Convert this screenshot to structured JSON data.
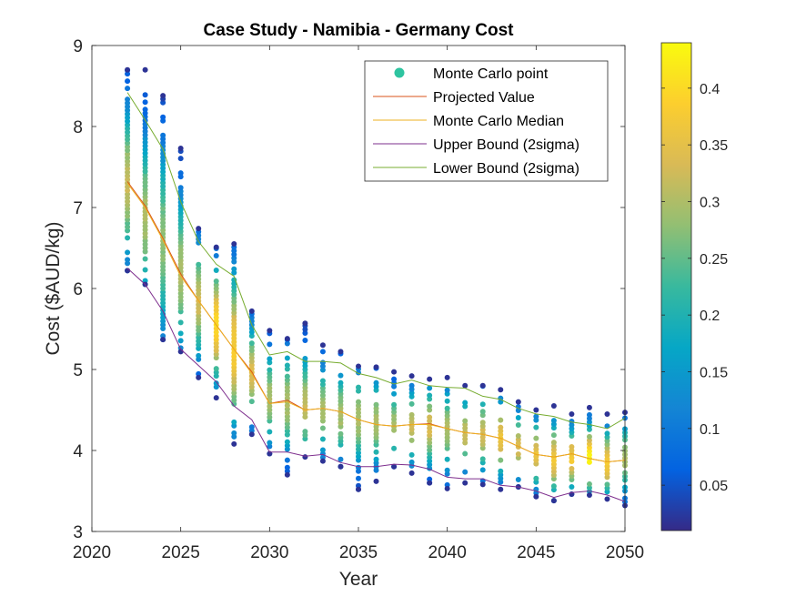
{
  "chart_data": {
    "type": "scatter",
    "title": "Case Study - Namibia - Germany Cost",
    "xlabel": "Year",
    "ylabel": "Cost ($AUD/kg)",
    "xlim": [
      2020,
      2050
    ],
    "ylim": [
      3,
      9
    ],
    "xticks": [
      2020,
      2025,
      2030,
      2035,
      2040,
      2045,
      2050
    ],
    "yticks": [
      3,
      4,
      5,
      6,
      7,
      8,
      9
    ],
    "grid": false,
    "legend_position": "top-right",
    "colorbar": {
      "min": 0.01,
      "max": 0.44,
      "ticks": [
        0.05,
        0.1,
        0.15,
        0.2,
        0.25,
        0.3,
        0.35,
        0.4
      ],
      "colormap": "parula"
    },
    "years": [
      2022,
      2023,
      2024,
      2025,
      2026,
      2027,
      2028,
      2029,
      2030,
      2031,
      2032,
      2033,
      2034,
      2035,
      2036,
      2037,
      2038,
      2039,
      2040,
      2041,
      2042,
      2043,
      2044,
      2045,
      2046,
      2047,
      2048,
      2049,
      2050
    ],
    "series": [
      {
        "name": "Monte Carlo point",
        "kind": "scatter",
        "color": "#2ec4a0",
        "point_min": [
          6.22,
          6.05,
          5.37,
          5.22,
          4.9,
          4.65,
          4.08,
          4.2,
          3.96,
          3.7,
          3.92,
          3.87,
          3.8,
          3.52,
          3.62,
          3.8,
          3.72,
          3.6,
          3.53,
          3.6,
          3.58,
          3.52,
          3.55,
          3.43,
          3.38,
          3.46,
          3.45,
          3.4,
          3.32
        ],
        "point_max": [
          8.7,
          8.7,
          8.38,
          7.73,
          6.74,
          6.51,
          6.55,
          5.72,
          5.48,
          5.38,
          5.57,
          5.3,
          5.22,
          5.04,
          5.03,
          4.97,
          4.92,
          4.88,
          4.9,
          4.8,
          4.8,
          4.75,
          4.6,
          4.5,
          4.55,
          4.45,
          4.53,
          4.45,
          4.47
        ],
        "density_peak": [
          7.3,
          6.9,
          6.6,
          6.2,
          5.85,
          5.55,
          5.25,
          4.95,
          4.65,
          4.6,
          4.55,
          4.5,
          4.45,
          4.4,
          4.35,
          4.3,
          4.3,
          4.3,
          4.25,
          4.2,
          4.2,
          4.15,
          4.05,
          3.95,
          3.9,
          3.9,
          3.9,
          3.85,
          3.9
        ],
        "density_peak_value": [
          0.32,
          0.3,
          0.28,
          0.3,
          0.33,
          0.4,
          0.38,
          0.34,
          0.3,
          0.3,
          0.32,
          0.3,
          0.3,
          0.3,
          0.3,
          0.3,
          0.32,
          0.34,
          0.3,
          0.32,
          0.33,
          0.36,
          0.34,
          0.36,
          0.37,
          0.38,
          0.43,
          0.38,
          0.3
        ]
      },
      {
        "name": "Projected Value",
        "kind": "line",
        "color": "#d95319",
        "values": [
          7.32,
          7.02,
          6.62,
          6.18,
          5.85,
          5.55,
          5.25,
          4.97,
          4.58,
          4.62,
          4.5,
          4.52,
          4.48,
          4.38,
          4.32,
          4.3,
          4.32,
          4.33,
          4.27,
          4.22,
          4.2,
          4.15,
          4.05,
          3.95,
          3.92,
          3.96,
          3.9,
          3.86,
          3.88
        ]
      },
      {
        "name": "Monte Carlo Median",
        "kind": "line",
        "color": "#edb120",
        "values": [
          7.3,
          7.0,
          6.6,
          6.15,
          5.85,
          5.55,
          5.25,
          4.95,
          4.58,
          4.6,
          4.5,
          4.52,
          4.48,
          4.38,
          4.32,
          4.3,
          4.32,
          4.32,
          4.27,
          4.22,
          4.2,
          4.15,
          4.05,
          3.95,
          3.92,
          3.96,
          3.9,
          3.86,
          3.88
        ]
      },
      {
        "name": "Upper Bound (2sigma)",
        "kind": "line",
        "color": "#7e2f8e",
        "values": [
          6.25,
          6.05,
          5.72,
          5.25,
          5.05,
          4.85,
          4.55,
          4.38,
          3.98,
          3.98,
          3.93,
          3.95,
          3.85,
          3.8,
          3.8,
          3.83,
          3.82,
          3.77,
          3.67,
          3.65,
          3.65,
          3.57,
          3.55,
          3.5,
          3.42,
          3.48,
          3.5,
          3.45,
          3.37
        ]
      },
      {
        "name": "Lower Bound (2sigma)",
        "kind": "line",
        "color": "#77ac30",
        "values": [
          8.42,
          8.08,
          7.72,
          7.07,
          6.58,
          6.3,
          6.15,
          5.55,
          5.18,
          5.22,
          5.1,
          5.1,
          5.08,
          4.95,
          4.9,
          4.82,
          4.87,
          4.8,
          4.78,
          4.77,
          4.67,
          4.63,
          4.52,
          4.45,
          4.42,
          4.35,
          4.32,
          4.27,
          4.4
        ]
      }
    ]
  }
}
